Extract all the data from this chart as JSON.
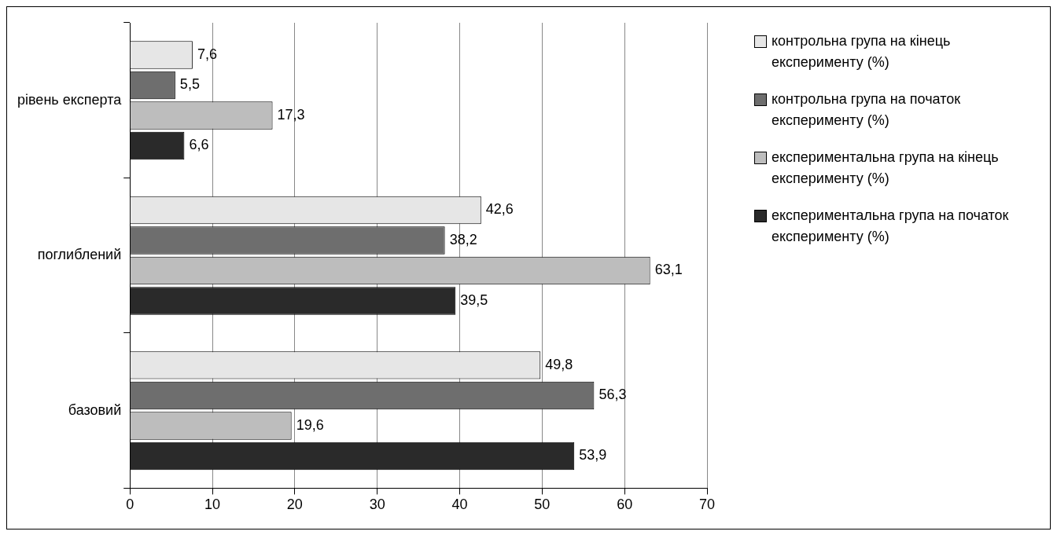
{
  "chart_data": {
    "type": "bar",
    "orientation": "horizontal",
    "categories": [
      "рівень експерта",
      "поглиблений",
      "базовий"
    ],
    "series": [
      {
        "name": "контрольна група на кінець експерименту (%)",
        "color": "#e6e6e6",
        "values": [
          7.6,
          42.6,
          49.8
        ],
        "value_labels": [
          "7,6",
          "42,6",
          "49,8"
        ]
      },
      {
        "name": "контрольна група на початок експерименту (%)",
        "color": "#6e6e6e",
        "values": [
          5.5,
          38.2,
          56.3
        ],
        "value_labels": [
          "5,5",
          "38,2",
          "56,3"
        ]
      },
      {
        "name": "експериментальна група на кінець експерименту (%)",
        "color": "#bdbdbd",
        "values": [
          17.3,
          63.1,
          19.6
        ],
        "value_labels": [
          "17,3",
          "63,1",
          "19,6"
        ]
      },
      {
        "name": "експериментальна група на початок експерименту (%)",
        "color": "#2a2a2a",
        "values": [
          6.6,
          39.5,
          53.9
        ],
        "value_labels": [
          "6,6",
          "39,5",
          "53,9"
        ]
      }
    ],
    "xlim": [
      0,
      70
    ],
    "xticks": [
      0,
      10,
      20,
      30,
      40,
      50,
      60,
      70
    ],
    "grid": "x",
    "legend": "right"
  }
}
